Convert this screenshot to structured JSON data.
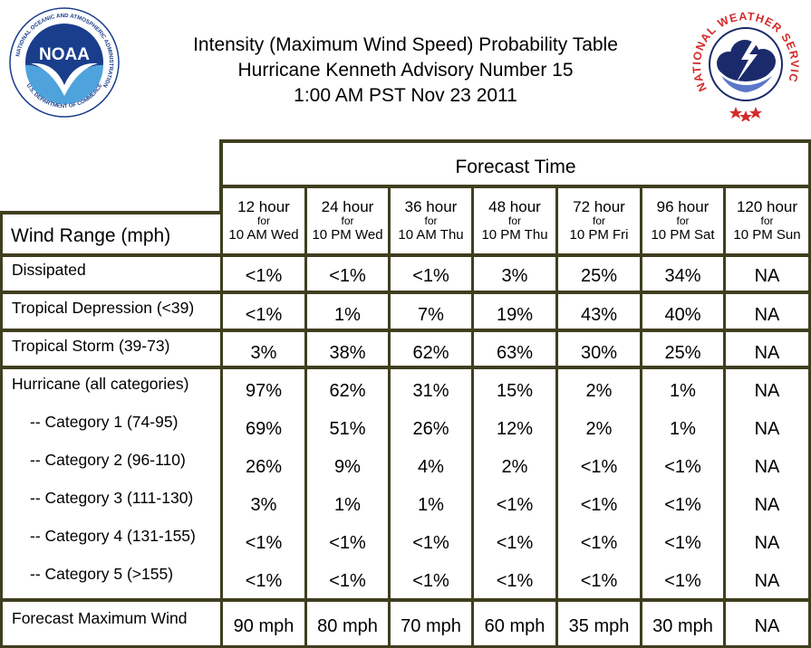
{
  "header": {
    "title_line1": "Intensity (Maximum Wind Speed) Probability Table",
    "title_line2": "Hurricane Kenneth Advisory Number 15",
    "title_line3": "1:00 AM PST Nov 23 2011",
    "noaa_logo": {
      "text": "NOAA",
      "ring_text": "NATIONAL OCEANIC AND ATMOSPHERIC ADMINISTRATION",
      "bottom_text": "U.S. DEPARTMENT OF COMMERCE"
    },
    "nws_logo": {
      "ring_text": "NATIONAL WEATHER SERVICE"
    }
  },
  "table": {
    "forecast_time_label": "Forecast Time",
    "wind_range_label": "Wind Range (mph)",
    "for_label": "for",
    "columns": [
      {
        "hour": "12 hour",
        "when": "10 AM Wed"
      },
      {
        "hour": "24 hour",
        "when": "10 PM Wed"
      },
      {
        "hour": "36 hour",
        "when": "10 AM Thu"
      },
      {
        "hour": "48 hour",
        "when": "10 PM Thu"
      },
      {
        "hour": "72 hour",
        "when": "10 PM Fri"
      },
      {
        "hour": "96 hour",
        "when": "10 PM Sat"
      },
      {
        "hour": "120 hour",
        "when": "10 PM Sun"
      }
    ],
    "rows": [
      {
        "label": "Dissipated",
        "values": [
          "<1%",
          "<1%",
          "<1%",
          "3%",
          "25%",
          "34%",
          "NA"
        ]
      },
      {
        "label": "Tropical Depression (<39)",
        "values": [
          "<1%",
          "1%",
          "7%",
          "19%",
          "43%",
          "40%",
          "NA"
        ]
      },
      {
        "label": "Tropical Storm (39-73)",
        "values": [
          "3%",
          "38%",
          "62%",
          "63%",
          "30%",
          "25%",
          "NA"
        ]
      },
      {
        "label": "Hurricane (all categories)",
        "values": [
          "97%",
          "62%",
          "31%",
          "15%",
          "2%",
          "1%",
          "NA"
        ]
      },
      {
        "label": "-- Category 1 (74-95)",
        "values": [
          "69%",
          "51%",
          "26%",
          "12%",
          "2%",
          "1%",
          "NA"
        ]
      },
      {
        "label": "-- Category 2 (96-110)",
        "values": [
          "26%",
          "9%",
          "4%",
          "2%",
          "<1%",
          "<1%",
          "NA"
        ]
      },
      {
        "label": "-- Category 3 (111-130)",
        "values": [
          "3%",
          "1%",
          "1%",
          "<1%",
          "<1%",
          "<1%",
          "NA"
        ]
      },
      {
        "label": "-- Category 4 (131-155)",
        "values": [
          "<1%",
          "<1%",
          "<1%",
          "<1%",
          "<1%",
          "<1%",
          "NA"
        ]
      },
      {
        "label": "-- Category 5 (>155)",
        "values": [
          "<1%",
          "<1%",
          "<1%",
          "<1%",
          "<1%",
          "<1%",
          "NA"
        ]
      },
      {
        "label": "Forecast Maximum Wind",
        "values": [
          "90 mph",
          "80 mph",
          "70 mph",
          "60 mph",
          "35 mph",
          "30 mph",
          "NA"
        ]
      }
    ]
  },
  "colors": {
    "grid_line": "#3f3f1f",
    "noaa_blue": "#1a3e8c",
    "noaa_light_blue": "#4fa3dc",
    "nws_red": "#d42a2a",
    "nws_navy": "#1b2a6b"
  }
}
